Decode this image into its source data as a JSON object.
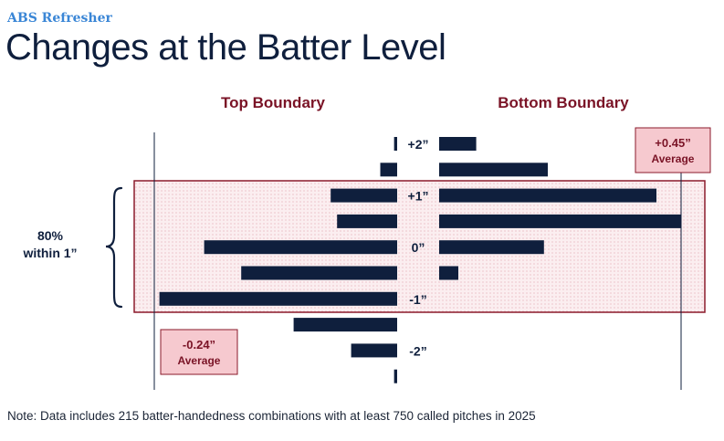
{
  "header": {
    "kicker": "ABS Refresher",
    "title": "Changes at the Batter Level"
  },
  "note": "Note: Data includes 215 batter-handedness combinations with at least 750 called pitches in 2025",
  "colors": {
    "bar": "#0f1f3d",
    "header": "#7a1326",
    "band_border": "#8b1a2b",
    "band_fill": "#f7e3e6",
    "callout_fill": "#f6c9cf",
    "kicker": "#3a86d6"
  },
  "chart_data": {
    "type": "bar",
    "orientation": "horizontal-butterfly",
    "categories": [
      "+2”",
      "",
      "+1”",
      "",
      "0”",
      "",
      "-1”",
      "",
      "-2”",
      ""
    ],
    "series": [
      {
        "name": "Top Boundary",
        "side": "left",
        "values": [
          1.2,
          6.6,
          26.0,
          23.5,
          75.5,
          61.0,
          93.0,
          40.5,
          18.0,
          1.2
        ]
      },
      {
        "name": "Bottom Boundary",
        "side": "right",
        "values": [
          14.5,
          42.5,
          85.0,
          94.5,
          41.0,
          7.5,
          0,
          0,
          0,
          0
        ]
      }
    ],
    "value_max": 95,
    "band": {
      "label_line1": "80%",
      "label_line2": "within 1”",
      "from_row": 2,
      "to_row": 6
    },
    "averages": [
      {
        "series": "Top Boundary",
        "value_label": "-0.24”",
        "label": "Average"
      },
      {
        "series": "Bottom Boundary",
        "value_label": "+0.45”",
        "label": "Average"
      }
    ]
  }
}
